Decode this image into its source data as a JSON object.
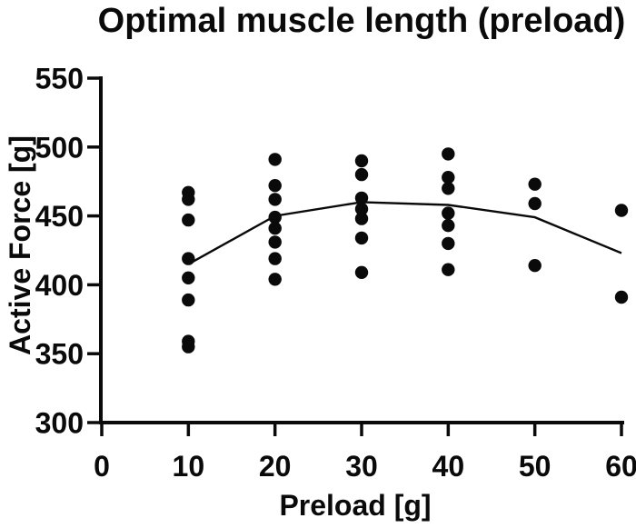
{
  "chart_data": {
    "type": "scatter",
    "title": "Optimal muscle length (preload)",
    "xlabel": "Preload [g]",
    "ylabel": "Active Force [g]",
    "xlim": [
      0,
      60
    ],
    "ylim": [
      300,
      550
    ],
    "x_ticks": [
      0,
      10,
      20,
      30,
      40,
      50,
      60
    ],
    "y_ticks": [
      550,
      500,
      450,
      400,
      350,
      300
    ],
    "grid": false,
    "legend": "none",
    "marker_color": "#0a0a0a",
    "line_color": "#0a0a0a",
    "background_color": "#ffffff",
    "scatter_groups": [
      {
        "x": 10,
        "values": [
          467,
          462,
          447,
          419,
          405,
          389,
          359,
          355
        ]
      },
      {
        "x": 20,
        "values": [
          491,
          472,
          462,
          449,
          441,
          431,
          419,
          404
        ]
      },
      {
        "x": 30,
        "values": [
          490,
          480,
          463,
          455,
          448,
          434,
          409
        ]
      },
      {
        "x": 40,
        "values": [
          495,
          478,
          470,
          452,
          443,
          430,
          411
        ]
      },
      {
        "x": 50,
        "values": [
          473,
          459,
          414
        ]
      },
      {
        "x": 60,
        "values": [
          454,
          391
        ]
      }
    ],
    "mean_line": [
      {
        "x": 10,
        "y": 415
      },
      {
        "x": 20,
        "y": 450
      },
      {
        "x": 30,
        "y": 460
      },
      {
        "x": 40,
        "y": 458
      },
      {
        "x": 50,
        "y": 449
      },
      {
        "x": 60,
        "y": 423
      }
    ]
  }
}
